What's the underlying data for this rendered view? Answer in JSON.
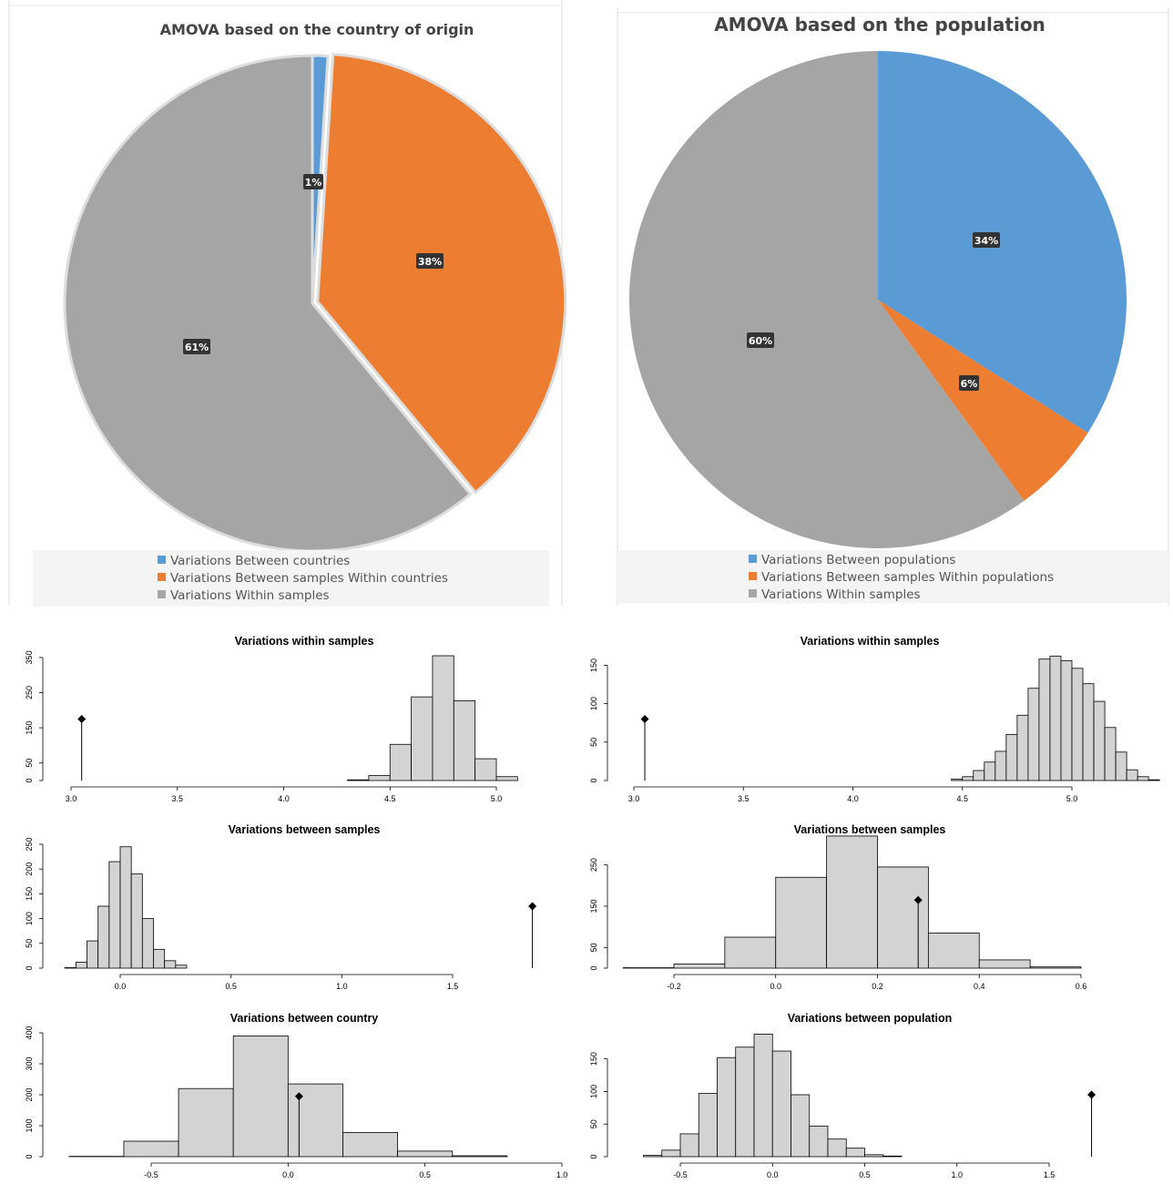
{
  "colors": {
    "blue": "#5b9bd5",
    "orange": "#ed7d31",
    "gray": "#a5a5a5",
    "bar": "#d3d3d3"
  },
  "chart_data": [
    {
      "type": "pie",
      "title": "AMOVA based on the country of origin",
      "slices": [
        {
          "legend": "Variations  Between countries",
          "value": 1,
          "label": "1%",
          "color": "#5b9bd5"
        },
        {
          "legend": "Variations  Between samples Within countries",
          "value": 38,
          "label": "38%",
          "color": "#ed7d31"
        },
        {
          "legend": "Variations  Within samples",
          "value": 61,
          "label": "61%",
          "color": "#a5a5a5"
        }
      ],
      "legend_position": "bottom"
    },
    {
      "type": "pie",
      "title": "AMOVA based on the population",
      "slices": [
        {
          "legend": "Variations  Between populations",
          "value": 34,
          "label": "34%",
          "color": "#5b9bd5"
        },
        {
          "legend": "Variations  Between samples Within populations",
          "value": 6,
          "label": "6%",
          "color": "#ed7d31"
        },
        {
          "legend": "Variations  Within samples",
          "value": 60,
          "label": "60%",
          "color": "#a5a5a5"
        }
      ],
      "legend_position": "bottom"
    },
    {
      "type": "bar",
      "title": "Variations within samples",
      "bin_start": 4.3,
      "bin_width": 0.1,
      "counts": [
        2,
        14,
        103,
        238,
        355,
        227,
        62,
        11
      ],
      "xlim": [
        3.0,
        5.2
      ],
      "xticks": [
        "3.0",
        "3.5",
        "4.0",
        "4.5",
        "5.0"
      ],
      "yticks": [
        "0",
        "50",
        "150",
        "250",
        "350"
      ],
      "ylim": [
        0,
        355
      ],
      "observed": {
        "x": 3.05,
        "y": 175
      }
    },
    {
      "type": "bar",
      "title": "Variations within samples",
      "bin_start": 4.45,
      "bin_width": 0.05,
      "counts": [
        2,
        5,
        13,
        24,
        38,
        60,
        85,
        120,
        158,
        162,
        156,
        146,
        126,
        103,
        69,
        37,
        14,
        5,
        1
      ],
      "xlim": [
        3.0,
        5.15
      ],
      "xticks": [
        "3.0",
        "3.5",
        "4.0",
        "4.5",
        "5.0"
      ],
      "yticks": [
        "0",
        "50",
        "100",
        "150"
      ],
      "ylim": [
        0,
        160
      ],
      "observed": {
        "x": 3.05,
        "y": 80
      }
    },
    {
      "type": "bar",
      "title": "Variations between samples",
      "bin_start": -0.25,
      "bin_width": 0.05,
      "counts": [
        1,
        12,
        55,
        125,
        215,
        245,
        190,
        100,
        38,
        15,
        6
      ],
      "xlim": [
        -0.25,
        1.5
      ],
      "xticks": [
        "0.0",
        "0.5",
        "1.0",
        "1.5"
      ],
      "yticks": [
        "0",
        "50",
        "100",
        "150",
        "200",
        "250"
      ],
      "ylim": [
        0,
        250
      ],
      "observed": {
        "x": 1.86,
        "y": 125
      }
    },
    {
      "type": "bar",
      "title": "Variations between samples",
      "bin_start": -0.3,
      "bin_width": 0.1,
      "counts": [
        1,
        10,
        75,
        220,
        320,
        245,
        85,
        20,
        3
      ],
      "xlim": [
        -0.3,
        0.6
      ],
      "xticks": [
        "-0.2",
        "0.0",
        "0.2",
        "0.4",
        "0.6"
      ],
      "yticks": [
        "0",
        "50",
        "150",
        "250"
      ],
      "ylim": [
        0,
        300
      ],
      "observed": {
        "x": 0.28,
        "y": 165
      }
    },
    {
      "type": "bar",
      "title": "Variations between country",
      "bin_start": -0.8,
      "bin_width": 0.2,
      "counts": [
        1,
        50,
        220,
        390,
        235,
        78,
        18,
        3
      ],
      "xlim": [
        -0.8,
        1.0
      ],
      "xticks": [
        "-0.5",
        "0.0",
        "0.5",
        "1.0"
      ],
      "yticks": [
        "0",
        "100",
        "200",
        "300",
        "400"
      ],
      "ylim": [
        0,
        400
      ],
      "observed": {
        "x": 0.04,
        "y": 195
      }
    },
    {
      "type": "bar",
      "title": "Variations between population",
      "bin_start": -0.7,
      "bin_width": 0.1,
      "counts": [
        2,
        10,
        35,
        97,
        152,
        168,
        188,
        162,
        95,
        47,
        27,
        13,
        3,
        1
      ],
      "xlim": [
        -0.7,
        1.5
      ],
      "xticks": [
        "-0.5",
        "0.0",
        "0.5",
        "1.0",
        "1.5"
      ],
      "yticks": [
        "0",
        "50",
        "100",
        "150"
      ],
      "ylim": [
        0,
        190
      ],
      "observed": {
        "x": 1.73,
        "y": 95
      }
    }
  ]
}
